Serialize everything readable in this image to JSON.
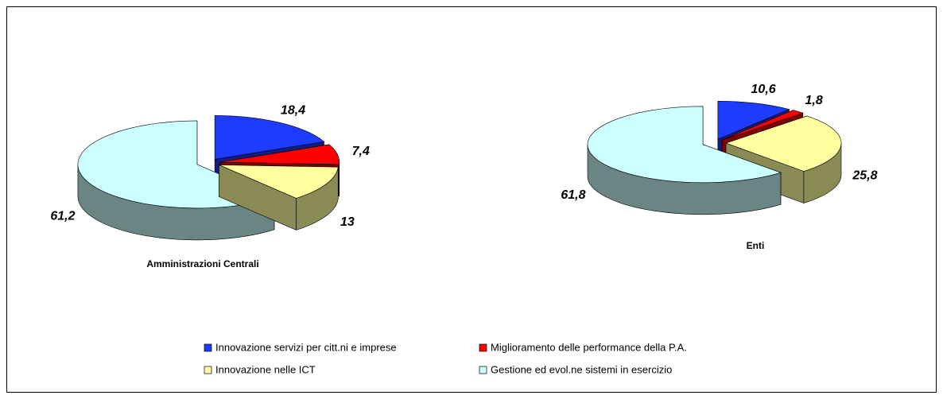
{
  "chart_data": {
    "type": "pie",
    "categories": [
      "Innovazione  servizi per citt.ni e imprese",
      "Miglioramento delle performance della P.A.",
      "Innovazione nelle ICT",
      "Gestione ed evol.ne sistemi in esercizio"
    ],
    "colors": [
      "#1e3cff",
      "#ff0000",
      "#ffffa0",
      "#ccffff"
    ],
    "side_colors": [
      "#0f1e80",
      "#800000",
      "#8a8a55",
      "#6b8585"
    ],
    "series": [
      {
        "name": "Amministrazioni Centrali",
        "values": [
          18.4,
          7.4,
          13,
          61.2
        ],
        "value_labels": [
          "18,4",
          "7,4",
          "13",
          "61,2"
        ]
      },
      {
        "name": "Enti",
        "values": [
          10.6,
          1.8,
          25.8,
          61.8
        ],
        "value_labels": [
          "10,6",
          "1,8",
          "25,8",
          "61,8"
        ]
      }
    ]
  }
}
